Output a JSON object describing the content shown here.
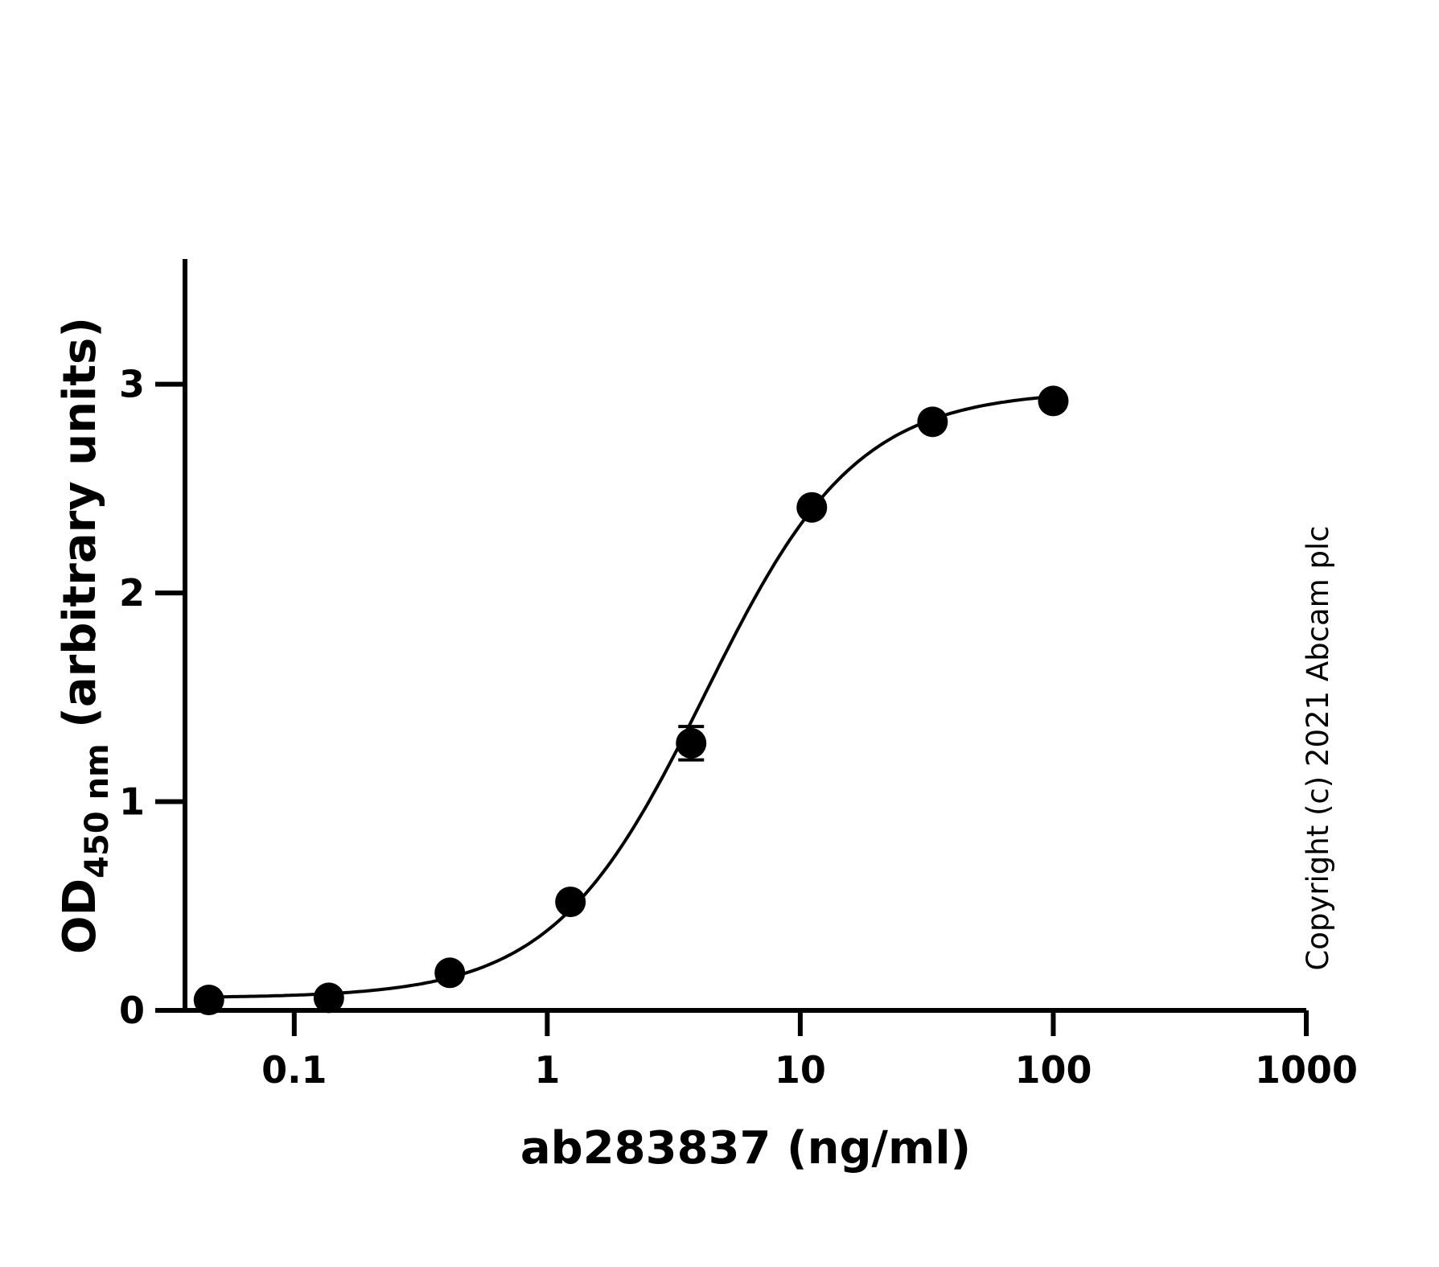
{
  "chart_data": {
    "type": "scatter",
    "xscale": "log",
    "xlim": [
      0.037,
      1000
    ],
    "ylim": [
      0,
      3.6
    ],
    "x_ticks": [
      0.1,
      1,
      10,
      100,
      1000
    ],
    "x_tick_labels": [
      "0.1",
      "1",
      "10",
      "100",
      "1000"
    ],
    "y_ticks": [
      0,
      1,
      2,
      3
    ],
    "y_tick_labels": [
      "0",
      "1",
      "2",
      "3"
    ],
    "xlabel": "ab283837 (ng/ml)",
    "ylabel": {
      "main": "OD",
      "subscript": "450 nm",
      "suffix": " (arbitrary units)"
    },
    "grid": false,
    "legend": "none",
    "series": [
      {
        "x": [
          0.046,
          0.137,
          0.412,
          1.235,
          3.704,
          11.11,
          33.33,
          100
        ],
        "y": [
          0.05,
          0.06,
          0.18,
          0.52,
          1.28,
          2.41,
          2.82,
          2.92
        ],
        "error": [
          0,
          0,
          0,
          0,
          0.08,
          0,
          0,
          0
        ]
      }
    ],
    "fit": {
      "model": "4PL",
      "bottom": 0.06,
      "top": 2.97,
      "ec50": 4.2,
      "hill": 1.45
    },
    "annotation": "Copyright (c) 2021 Abcam plc",
    "color": "#000000"
  }
}
